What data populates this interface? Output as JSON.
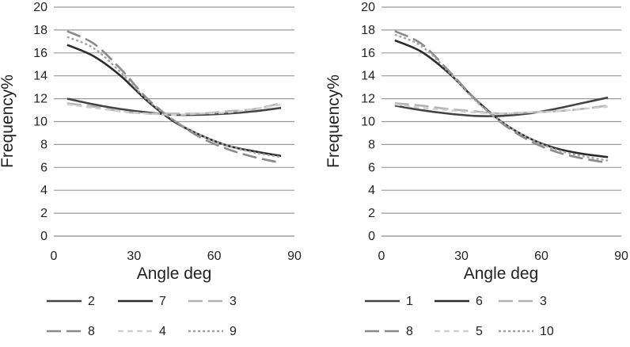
{
  "chart_data": [
    {
      "type": "line",
      "xlabel": "Angle deg",
      "ylabel": "Frequency%",
      "xlim": [
        0,
        90
      ],
      "ylim": [
        0,
        20
      ],
      "xticks": [
        0,
        30,
        60,
        90
      ],
      "yticks": [
        0,
        2,
        4,
        6,
        8,
        10,
        12,
        14,
        16,
        18,
        20
      ],
      "grid": "horizontal",
      "legend": "bottom",
      "x": [
        5,
        15,
        25,
        35,
        45,
        55,
        65,
        75,
        85
      ],
      "series": [
        {
          "name": "2",
          "style": "solid",
          "color": "#444444",
          "values": [
            12.0,
            11.5,
            11.1,
            10.8,
            10.6,
            10.6,
            10.7,
            10.9,
            11.2
          ]
        },
        {
          "name": "7",
          "style": "solid",
          "color": "#2b2b2b",
          "values": [
            16.7,
            15.7,
            14.0,
            11.8,
            10.0,
            8.8,
            7.9,
            7.4,
            7.0
          ]
        },
        {
          "name": "3",
          "style": "longdash",
          "color": "#b3b3b3",
          "values": [
            11.6,
            11.3,
            10.9,
            10.7,
            10.7,
            10.7,
            10.9,
            11.1,
            11.6
          ]
        },
        {
          "name": "8",
          "style": "longdash",
          "color": "#8a8a8a",
          "values": [
            17.9,
            16.8,
            14.6,
            12.0,
            10.1,
            8.6,
            7.6,
            6.9,
            6.4
          ]
        },
        {
          "name": "4",
          "style": "shortdash",
          "color": "#cfcfcf",
          "values": [
            11.5,
            11.2,
            10.9,
            10.7,
            10.6,
            10.7,
            10.8,
            11.1,
            11.5
          ]
        },
        {
          "name": "9",
          "style": "dot",
          "color": "#a3a3a3",
          "values": [
            17.4,
            16.4,
            14.3,
            11.9,
            10.1,
            8.8,
            7.9,
            7.3,
            6.9
          ]
        }
      ]
    },
    {
      "type": "line",
      "xlabel": "Angle deg",
      "ylabel": "Frequency%",
      "xlim": [
        0,
        90
      ],
      "ylim": [
        0,
        20
      ],
      "xticks": [
        0,
        30,
        60,
        90
      ],
      "yticks": [
        0,
        2,
        4,
        6,
        8,
        10,
        12,
        14,
        16,
        18,
        20
      ],
      "grid": "horizontal",
      "legend": "bottom",
      "x": [
        5,
        15,
        25,
        35,
        45,
        55,
        65,
        75,
        85
      ],
      "series": [
        {
          "name": "1",
          "style": "solid",
          "color": "#444444",
          "values": [
            11.4,
            11.0,
            10.7,
            10.5,
            10.5,
            10.7,
            11.1,
            11.6,
            12.1
          ]
        },
        {
          "name": "6",
          "style": "solid",
          "color": "#2b2b2b",
          "values": [
            17.1,
            16.1,
            14.3,
            12.0,
            10.0,
            8.6,
            7.7,
            7.2,
            6.9
          ]
        },
        {
          "name": "3",
          "style": "longdash",
          "color": "#b3b3b3",
          "values": [
            11.6,
            11.4,
            11.1,
            10.9,
            10.7,
            10.8,
            10.9,
            11.1,
            11.4
          ]
        },
        {
          "name": "8",
          "style": "longdash",
          "color": "#8a8a8a",
          "values": [
            17.9,
            16.8,
            14.5,
            12.0,
            9.9,
            8.4,
            7.4,
            6.8,
            6.4
          ]
        },
        {
          "name": "5",
          "style": "shortdash",
          "color": "#cfcfcf",
          "values": [
            11.5,
            11.2,
            11.0,
            10.8,
            10.7,
            10.8,
            10.9,
            11.1,
            11.3
          ]
        },
        {
          "name": "10",
          "style": "dot",
          "color": "#a3a3a3",
          "values": [
            17.6,
            16.6,
            14.4,
            11.9,
            10.0,
            8.6,
            7.6,
            7.0,
            6.6
          ]
        }
      ]
    }
  ]
}
